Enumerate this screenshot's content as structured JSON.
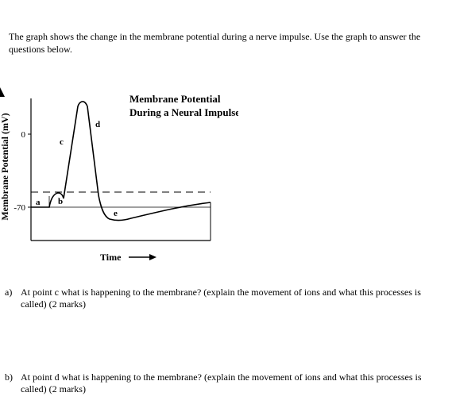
{
  "intro": "The graph shows the change in the membrane potential during a nerve impulse.  Use the graph to answer the questions below.",
  "chart_data": {
    "type": "line",
    "title": "Membrane Potential",
    "subtitle": "During a Neural Impulse",
    "ylabel": "Membrane Potential (mV)",
    "xlabel": "Time",
    "yticks": [
      "0",
      "-70"
    ],
    "threshold_line": "dashed",
    "point_labels": [
      "a",
      "b",
      "c",
      "d",
      "e"
    ]
  },
  "questions": [
    {
      "letter": "a)",
      "text": "At point c what is happening to the membrane?  (explain the movement of ions and what this processes is called) (2 marks)"
    },
    {
      "letter": "b)",
      "text": "At point d what is happening to the membrane?  (explain the movement of ions and what this processes is called) (2 marks)"
    }
  ]
}
